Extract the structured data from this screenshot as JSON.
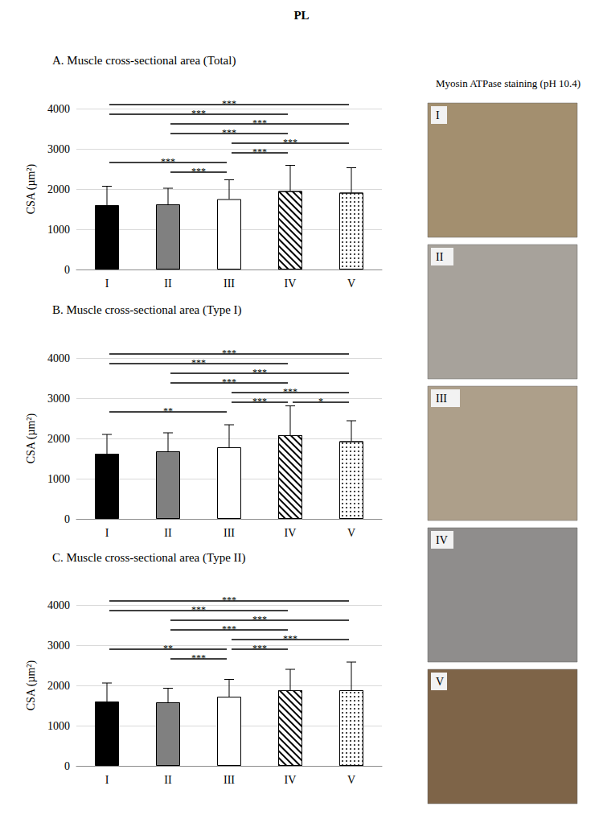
{
  "title": "PL",
  "chart_data": [
    {
      "type": "bar",
      "title": "A. Muscle cross-sectional area (Total)",
      "y_label": "CSA (µm²)",
      "categories": [
        "I",
        "II",
        "III",
        "IV",
        "V"
      ],
      "values": [
        1600,
        1620,
        1750,
        1950,
        1910
      ],
      "errors": [
        470,
        400,
        480,
        640,
        620
      ],
      "colors": [
        "#000000",
        "#808080",
        "#ffffff",
        "#ffffff",
        "#ffffff"
      ],
      "ylim": [
        0,
        4000
      ],
      "yticks": [
        0,
        1000,
        2000,
        3000,
        4000
      ],
      "grid": true,
      "annotations": [
        {
          "from": "I",
          "to": "V",
          "text": "***"
        },
        {
          "from": "I",
          "to": "IV",
          "text": "***"
        },
        {
          "from": "II",
          "to": "V",
          "text": "***"
        },
        {
          "from": "II",
          "to": "IV",
          "text": "***"
        },
        {
          "from": "III",
          "to": "V",
          "text": "***"
        },
        {
          "from": "III",
          "to": "IV",
          "text": "***"
        },
        {
          "from": "I",
          "to": "III",
          "text": "***"
        },
        {
          "from": "II",
          "to": "III",
          "text": "***"
        }
      ]
    },
    {
      "type": "bar",
      "title": "B. Muscle cross-sectional area (Type I)",
      "y_label": "CSA (µm²)",
      "categories": [
        "I",
        "II",
        "III",
        "IV",
        "V"
      ],
      "values": [
        1620,
        1680,
        1780,
        2080,
        1930
      ],
      "errors": [
        480,
        460,
        560,
        730,
        510
      ],
      "colors": [
        "#000000",
        "#808080",
        "#ffffff",
        "#ffffff",
        "#ffffff"
      ],
      "ylim": [
        0,
        4000
      ],
      "yticks": [
        0,
        1000,
        2000,
        3000,
        4000
      ],
      "grid": true,
      "annotations": [
        {
          "from": "I",
          "to": "V",
          "text": "***"
        },
        {
          "from": "I",
          "to": "IV",
          "text": "***"
        },
        {
          "from": "II",
          "to": "V",
          "text": "***"
        },
        {
          "from": "II",
          "to": "IV",
          "text": "***"
        },
        {
          "from": "III",
          "to": "V",
          "text": "***"
        },
        {
          "from": "III",
          "to": "IV",
          "text": "***"
        },
        {
          "from": "IV",
          "to": "V",
          "text": "*"
        },
        {
          "from": "I",
          "to": "III",
          "text": "**"
        }
      ]
    },
    {
      "type": "bar",
      "title": "C. Muscle cross-sectional area (Type II)",
      "y_label": "CSA (µm²)",
      "categories": [
        "I",
        "II",
        "III",
        "IV",
        "V"
      ],
      "values": [
        1600,
        1580,
        1720,
        1880,
        1880
      ],
      "errors": [
        460,
        350,
        430,
        520,
        700
      ],
      "colors": [
        "#000000",
        "#808080",
        "#ffffff",
        "#ffffff",
        "#ffffff"
      ],
      "ylim": [
        0,
        4000
      ],
      "yticks": [
        0,
        1000,
        2000,
        3000,
        4000
      ],
      "grid": true,
      "annotations": [
        {
          "from": "I",
          "to": "V",
          "text": "***"
        },
        {
          "from": "I",
          "to": "IV",
          "text": "***"
        },
        {
          "from": "II",
          "to": "V",
          "text": "***"
        },
        {
          "from": "II",
          "to": "IV",
          "text": "***"
        },
        {
          "from": "III",
          "to": "V",
          "text": "***"
        },
        {
          "from": "I",
          "to": "III",
          "text": "**"
        },
        {
          "from": "III",
          "to": "IV",
          "text": "***"
        },
        {
          "from": "II",
          "to": "III",
          "text": "***"
        }
      ]
    }
  ],
  "images": {
    "title": "Myosin ATPase staining (pH 10.4)",
    "labels": [
      "I",
      "II",
      "III",
      "IV",
      "V"
    ]
  }
}
